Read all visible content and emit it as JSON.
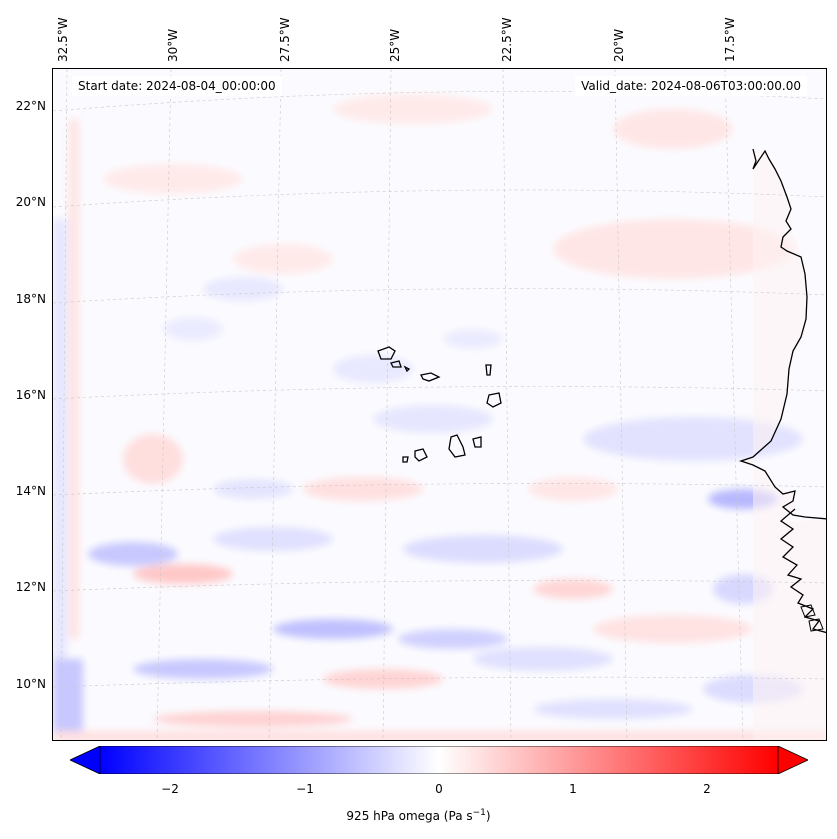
{
  "header": {
    "start_date": "Start date: 2024-08-04_00:00:00",
    "valid_date": "Valid_date: 2024-08-06T03:00:00.00"
  },
  "axes": {
    "lon_labels": [
      "32.5°W",
      "30°W",
      "27.5°W",
      "25°W",
      "22.5°W",
      "20°W",
      "17.5°W"
    ],
    "lat_labels": [
      "22°N",
      "20°N",
      "18°N",
      "16°N",
      "14°N",
      "12°N",
      "10°N"
    ]
  },
  "colorbar": {
    "title": "925 hPa omega (Pa s",
    "title_exp": "−1",
    "title_close": ")",
    "ticks": [
      "−2",
      "−1",
      "0",
      "1",
      "2"
    ],
    "min": -2.7,
    "max": 2.7,
    "colormap": "bwr",
    "low_color": "#0000ff",
    "mid_color": "#ffffff",
    "high_color": "#ff0000"
  },
  "map": {
    "field": "925 hPa omega",
    "land_color": "#fdf6f6",
    "coast_color": "#000000",
    "grid_color": "#c8c8c8"
  }
}
